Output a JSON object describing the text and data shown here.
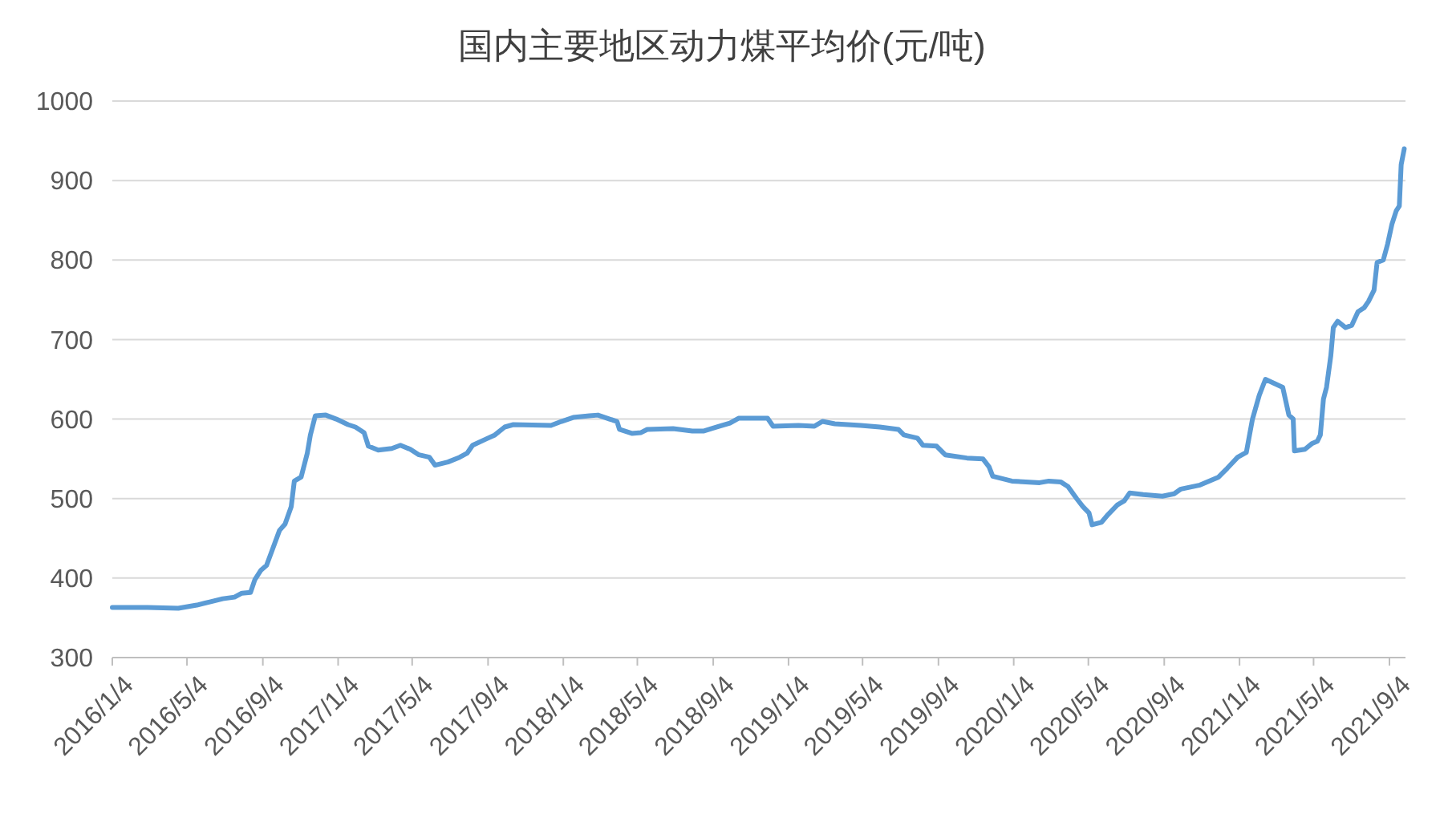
{
  "chart_data": {
    "type": "line",
    "title": "国内主要地区动力煤平均价(元/吨)",
    "x": [
      "2016-01-04",
      "2016-03-01",
      "2016-04-20",
      "2016-05-20",
      "2016-06-10",
      "2016-07-01",
      "2016-07-20",
      "2016-08-01",
      "2016-08-15",
      "2016-08-22",
      "2016-09-01",
      "2016-09-10",
      "2016-09-20",
      "2016-10-01",
      "2016-10-10",
      "2016-10-20",
      "2016-10-25",
      "2016-11-05",
      "2016-11-15",
      "2016-11-20",
      "2016-11-28",
      "2016-12-15",
      "2017-01-01",
      "2017-01-20",
      "2017-02-01",
      "2017-02-15",
      "2017-02-22",
      "2017-03-10",
      "2017-04-01",
      "2017-04-15",
      "2017-05-01",
      "2017-05-15",
      "2017-06-01",
      "2017-06-10",
      "2017-07-01",
      "2017-07-20",
      "2017-08-01",
      "2017-08-10",
      "2017-09-01",
      "2017-09-15",
      "2017-10-01",
      "2017-10-15",
      "2017-12-15",
      "2018-01-01",
      "2018-01-20",
      "2018-02-15",
      "2018-03-01",
      "2018-03-20",
      "2018-04-01",
      "2018-04-05",
      "2018-04-25",
      "2018-05-10",
      "2018-05-20",
      "2018-07-01",
      "2018-08-01",
      "2018-08-20",
      "2018-09-10",
      "2018-10-01",
      "2018-10-15",
      "2018-12-01",
      "2018-12-10",
      "2019-01-20",
      "2019-02-15",
      "2019-02-28",
      "2019-03-20",
      "2019-05-01",
      "2019-06-01",
      "2019-07-01",
      "2019-07-10",
      "2019-08-01",
      "2019-08-10",
      "2019-09-01",
      "2019-09-15",
      "2019-10-20",
      "2019-11-15",
      "2019-11-25",
      "2019-12-01",
      "2020-01-01",
      "2020-02-15",
      "2020-03-01",
      "2020-03-20",
      "2020-04-01",
      "2020-04-15",
      "2020-04-25",
      "2020-05-05",
      "2020-05-10",
      "2020-05-25",
      "2020-06-05",
      "2020-06-20",
      "2020-07-01",
      "2020-07-10",
      "2020-08-01",
      "2020-09-01",
      "2020-09-20",
      "2020-10-01",
      "2020-11-01",
      "2020-12-01",
      "2020-12-15",
      "2021-01-01",
      "2021-01-15",
      "2021-01-25",
      "2021-02-05",
      "2021-02-15",
      "2021-03-01",
      "2021-03-15",
      "2021-03-25",
      "2021-04-01",
      "2021-04-03",
      "2021-04-20",
      "2021-05-01",
      "2021-05-10",
      "2021-05-15",
      "2021-05-20",
      "2021-05-25",
      "2021-06-01",
      "2021-06-05",
      "2021-06-12",
      "2021-06-25",
      "2021-07-05",
      "2021-07-15",
      "2021-07-25",
      "2021-08-01",
      "2021-08-10",
      "2021-08-15",
      "2021-08-25",
      "2021-09-01",
      "2021-09-08",
      "2021-09-15",
      "2021-09-20",
      "2021-09-23",
      "2021-09-28"
    ],
    "series": [
      {
        "color": "#5b9bd5",
        "values": [
          363,
          363,
          362,
          366,
          370,
          374,
          376,
          381,
          382,
          398,
          410,
          416,
          437,
          460,
          468,
          490,
          522,
          527,
          557,
          580,
          604,
          605,
          600,
          593,
          590,
          583,
          566,
          561,
          563,
          567,
          562,
          555,
          552,
          542,
          546,
          552,
          557,
          567,
          575,
          580,
          590,
          593,
          592,
          597,
          602,
          604,
          605,
          600,
          597,
          587,
          582,
          583,
          587,
          588,
          585,
          585,
          590,
          595,
          601,
          601,
          591,
          592,
          591,
          597,
          594,
          592,
          590,
          587,
          580,
          576,
          567,
          566,
          555,
          551,
          550,
          540,
          528,
          522,
          520,
          522,
          521,
          515,
          500,
          490,
          482,
          467,
          470,
          480,
          492,
          497,
          507,
          505,
          503,
          506,
          512,
          517,
          527,
          538,
          552,
          558,
          600,
          630,
          650,
          645,
          640,
          605,
          600,
          560,
          562,
          569,
          572,
          580,
          625,
          640,
          680,
          715,
          723,
          715,
          718,
          735,
          740,
          748,
          762,
          797,
          800,
          820,
          845,
          862,
          868,
          920,
          940
        ]
      }
    ],
    "xlim": [
      "2016-01-04",
      "2021-09-30"
    ],
    "xticks": [
      {
        "value": "2016-01-04",
        "label": "2016/1/4"
      },
      {
        "value": "2016-05-04",
        "label": "2016/5/4"
      },
      {
        "value": "2016-09-04",
        "label": "2016/9/4"
      },
      {
        "value": "2017-01-04",
        "label": "2017/1/4"
      },
      {
        "value": "2017-05-04",
        "label": "2017/5/4"
      },
      {
        "value": "2017-09-04",
        "label": "2017/9/4"
      },
      {
        "value": "2018-01-04",
        "label": "2018/1/4"
      },
      {
        "value": "2018-05-04",
        "label": "2018/5/4"
      },
      {
        "value": "2018-09-04",
        "label": "2018/9/4"
      },
      {
        "value": "2019-01-04",
        "label": "2019/1/4"
      },
      {
        "value": "2019-05-04",
        "label": "2019/5/4"
      },
      {
        "value": "2019-09-04",
        "label": "2019/9/4"
      },
      {
        "value": "2020-01-04",
        "label": "2020/1/4"
      },
      {
        "value": "2020-05-04",
        "label": "2020/5/4"
      },
      {
        "value": "2020-09-04",
        "label": "2020/9/4"
      },
      {
        "value": "2021-01-04",
        "label": "2021/1/4"
      },
      {
        "value": "2021-05-04",
        "label": "2021/5/4"
      },
      {
        "value": "2021-09-04",
        "label": "2021/9/4"
      }
    ],
    "ylim": [
      300,
      1000
    ],
    "yticks": [
      300,
      400,
      500,
      600,
      700,
      800,
      900,
      1000
    ],
    "grid": "y",
    "line_style": "solid",
    "marker": "none"
  }
}
